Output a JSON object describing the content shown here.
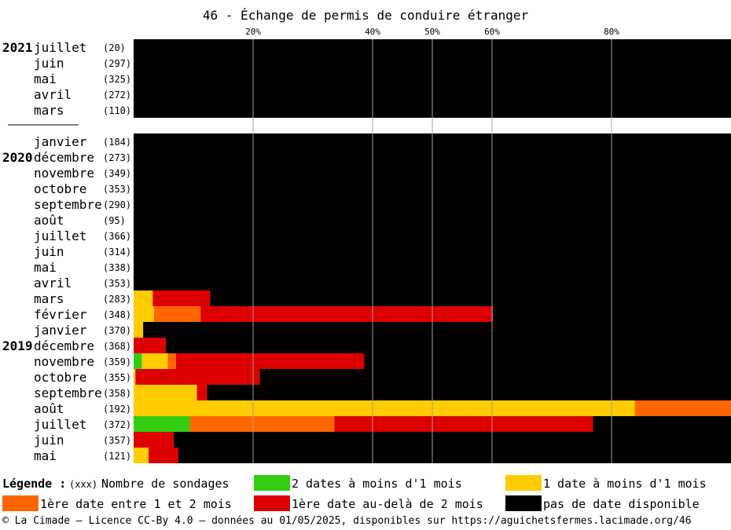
{
  "chart_data": {
    "type": "bar",
    "orientation": "horizontal",
    "stacked": true,
    "title": "46 - Échange de permis de conduire étranger",
    "x_ticks": [
      "20%",
      "40%",
      "50%",
      "60%",
      "80%"
    ],
    "x_tick_values": [
      20,
      40,
      50,
      60,
      80
    ],
    "xlim": [
      0,
      100
    ],
    "grid": true,
    "series_names": [
      "2 dates à moins d'1 mois",
      "1 date à moins d'1 mois",
      "1ère date entre 1 et 2 mois",
      "1ère date au-delà de 2 mois",
      "pas de date disponible"
    ],
    "colors": [
      "#33cc11",
      "#ffcc00",
      "#ff6600",
      "#dd0000",
      "#000000"
    ],
    "rows": [
      {
        "year": "2021",
        "month": "juillet",
        "count": "(20)",
        "values": [
          0,
          0,
          0,
          0,
          100
        ]
      },
      {
        "year": "",
        "month": "juin",
        "count": "(297)",
        "values": [
          0,
          0,
          0,
          0,
          100
        ]
      },
      {
        "year": "",
        "month": "mai",
        "count": "(325)",
        "values": [
          0,
          0,
          0,
          0,
          100
        ]
      },
      {
        "year": "",
        "month": "avril",
        "count": "(272)",
        "values": [
          0,
          0,
          0,
          0,
          100
        ]
      },
      {
        "year": "",
        "month": "mars",
        "count": "(110)",
        "values": [
          0,
          0,
          0,
          0,
          100
        ]
      },
      {
        "year": "",
        "month": "janvier",
        "count": "(184)",
        "values": [
          0,
          0,
          0,
          0,
          100
        ]
      },
      {
        "year": "2020",
        "month": "décembre",
        "count": "(273)",
        "values": [
          0,
          0,
          0,
          0,
          100
        ]
      },
      {
        "year": "",
        "month": "novembre",
        "count": "(349)",
        "values": [
          0,
          0,
          0,
          0,
          100
        ]
      },
      {
        "year": "",
        "month": "octobre",
        "count": "(353)",
        "values": [
          0,
          0,
          0,
          0,
          100
        ]
      },
      {
        "year": "",
        "month": "septembre",
        "count": "(290)",
        "values": [
          0,
          0,
          0,
          0,
          100
        ]
      },
      {
        "year": "",
        "month": "août",
        "count": "(95)",
        "values": [
          0,
          0,
          0,
          0,
          100
        ]
      },
      {
        "year": "",
        "month": "juillet",
        "count": "(366)",
        "values": [
          0,
          0,
          0,
          0,
          100
        ]
      },
      {
        "year": "",
        "month": "juin",
        "count": "(314)",
        "values": [
          0,
          0,
          0,
          0,
          100
        ]
      },
      {
        "year": "",
        "month": "mai",
        "count": "(338)",
        "values": [
          0,
          0,
          0,
          0,
          100
        ]
      },
      {
        "year": "",
        "month": "avril",
        "count": "(353)",
        "values": [
          0,
          0,
          0,
          0,
          100
        ]
      },
      {
        "year": "",
        "month": "mars",
        "count": "(283)",
        "values": [
          0,
          3.2,
          0,
          9.6,
          87.2
        ]
      },
      {
        "year": "",
        "month": "février",
        "count": "(348)",
        "values": [
          0,
          3.4,
          7.8,
          48.9,
          39.9
        ]
      },
      {
        "year": "",
        "month": "janvier",
        "count": "(370)",
        "values": [
          0,
          1.6,
          0,
          0,
          98.4
        ]
      },
      {
        "year": "2019",
        "month": "décembre",
        "count": "(368)",
        "values": [
          0,
          0,
          0,
          5.4,
          94.6
        ]
      },
      {
        "year": "",
        "month": "novembre",
        "count": "(359)",
        "values": [
          1.4,
          4.3,
          1.4,
          31.5,
          61.4
        ]
      },
      {
        "year": "",
        "month": "octobre",
        "count": "(355)",
        "values": [
          0,
          0.3,
          0,
          20.8,
          78.9
        ]
      },
      {
        "year": "",
        "month": "septembre",
        "count": "(358)",
        "values": [
          0,
          10.6,
          0,
          1.7,
          87.7
        ]
      },
      {
        "year": "",
        "month": "août",
        "count": "(192)",
        "values": [
          0,
          83.9,
          16.1,
          0,
          0
        ]
      },
      {
        "year": "",
        "month": "juillet",
        "count": "(372)",
        "values": [
          9.4,
          0,
          24.2,
          43.3,
          23.1
        ]
      },
      {
        "year": "",
        "month": "juin",
        "count": "(357)",
        "values": [
          0,
          0,
          0,
          6.7,
          93.3
        ]
      },
      {
        "year": "",
        "month": "mai",
        "count": "(121)",
        "values": [
          0,
          2.5,
          0,
          5,
          92.5
        ]
      }
    ]
  },
  "legend": {
    "title": "Légende :",
    "count_marker": "(xxx)",
    "count_label": "Nombre de sondages",
    "items": [
      {
        "label": "2 dates à moins d'1 mois",
        "color": "#33cc11"
      },
      {
        "label": "1 date à moins d'1 mois",
        "color": "#ffcc00"
      },
      {
        "label": "1ère date entre 1 et 2 mois",
        "color": "#ff6600"
      },
      {
        "label": "1ère date au-delà de 2 mois",
        "color": "#dd0000"
      },
      {
        "label": "pas de date disponible",
        "color": "#000000"
      }
    ]
  },
  "footer": "© La Cimade — Licence CC-By 4.0 — données au 01/05/2025, disponibles sur https://aguichetsfermes.lacimade.org/46"
}
